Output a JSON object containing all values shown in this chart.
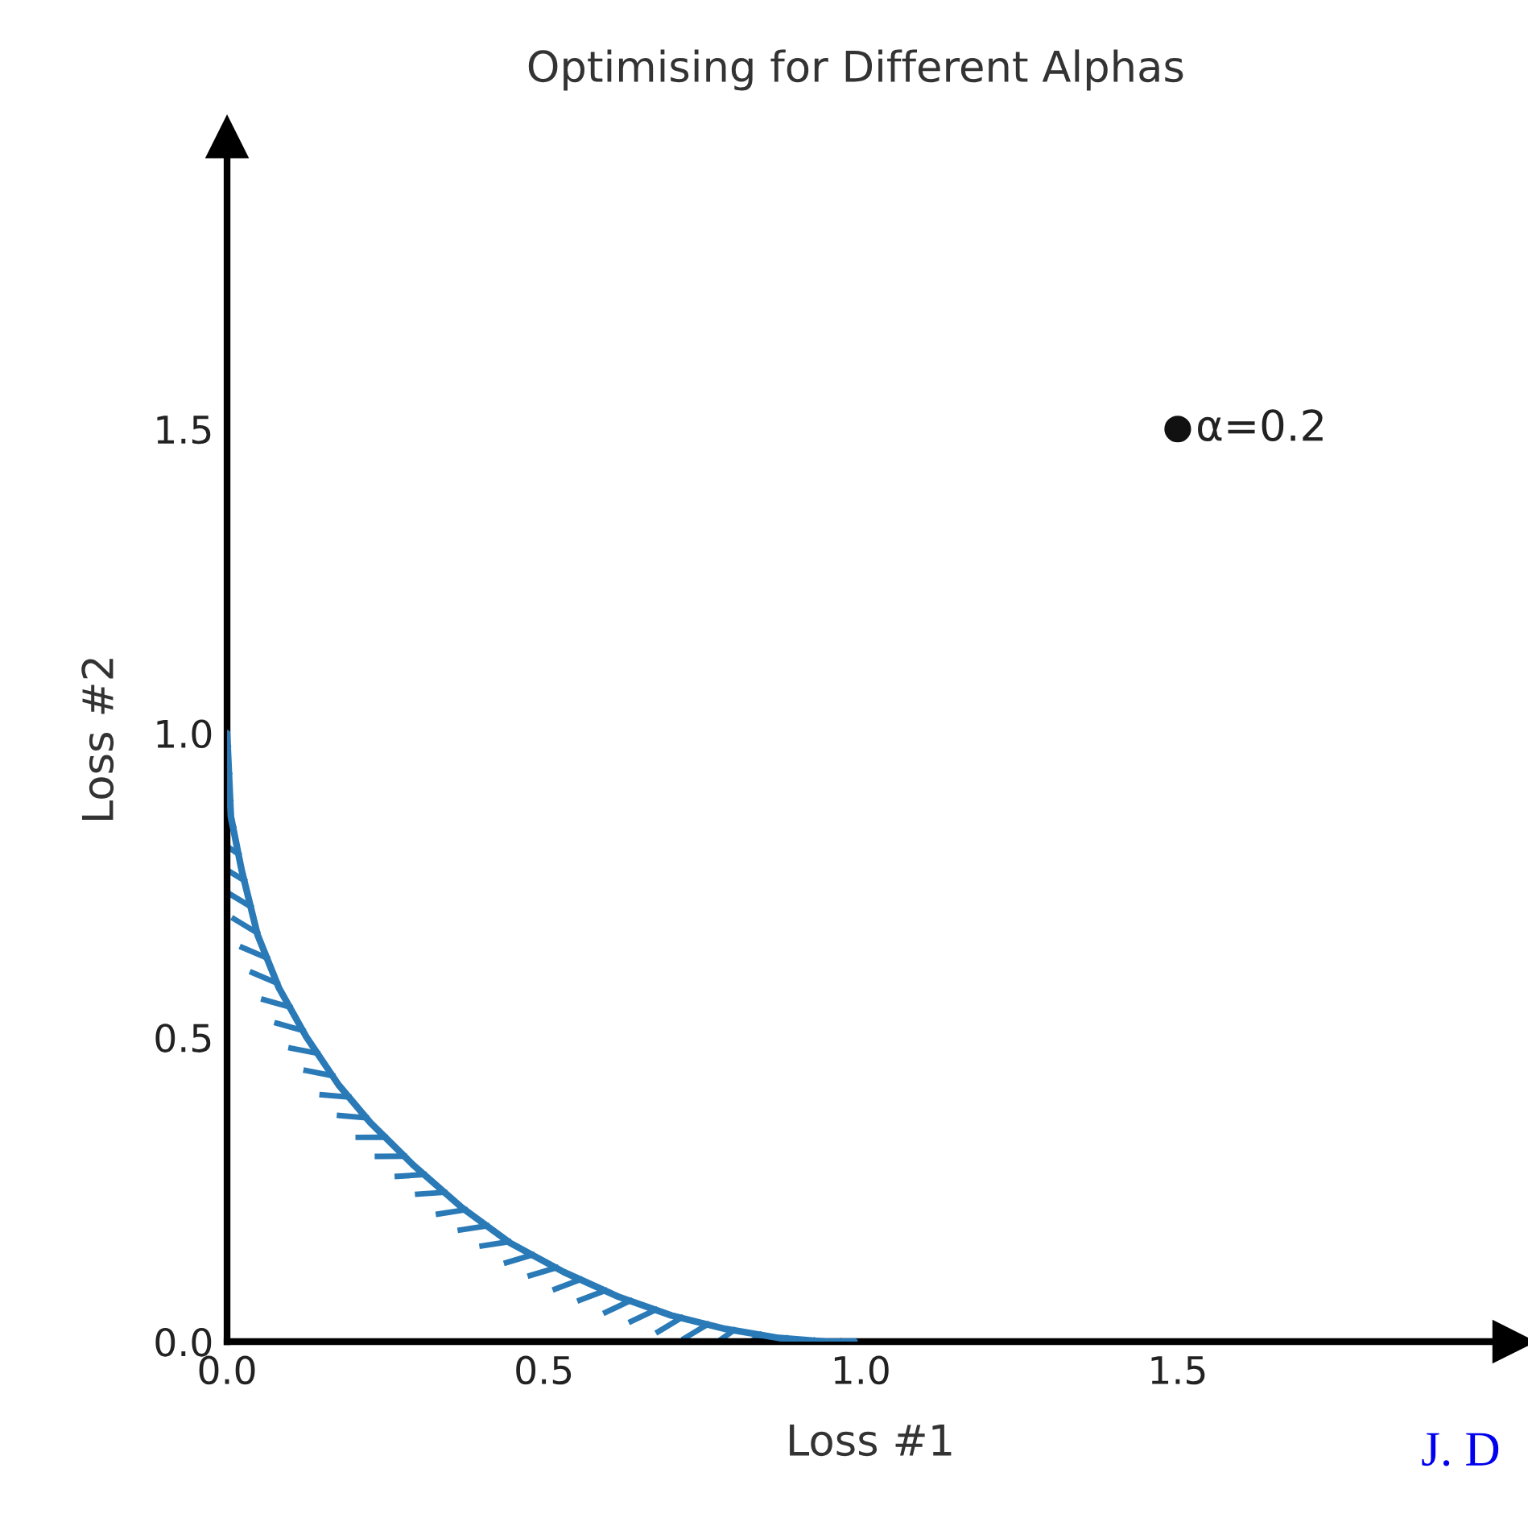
{
  "chart_data": {
    "type": "line",
    "title": "Optimising for Different Alphas",
    "xlabel": "Loss #1",
    "ylabel": "Loss #2",
    "xlim": [
      0,
      2.03
    ],
    "ylim": [
      0,
      1.98
    ],
    "xticks": [
      {
        "value": 0,
        "label": "0.0"
      },
      {
        "value": 0.5,
        "label": "0.5"
      },
      {
        "value": 1,
        "label": "1.0"
      },
      {
        "value": 1.5,
        "label": "1.5"
      }
    ],
    "yticks": [
      {
        "value": 0,
        "label": "0.0"
      },
      {
        "value": 0.5,
        "label": "0.5"
      },
      {
        "value": 1,
        "label": "1.0"
      },
      {
        "value": 1.5,
        "label": "1.5"
      }
    ],
    "grid": false,
    "marker": "none",
    "line_style": "solid",
    "series": [
      {
        "color": "#2a7ab7",
        "x": [
          0.0,
          0.006,
          0.023,
          0.048,
          0.082,
          0.125,
          0.176,
          0.226,
          0.294,
          0.371,
          0.447,
          0.532,
          0.617,
          0.701,
          0.786,
          0.871,
          0.947,
          0.99
        ],
        "values": [
          1.0,
          0.863,
          0.775,
          0.669,
          0.581,
          0.501,
          0.422,
          0.36,
          0.29,
          0.22,
          0.162,
          0.114,
          0.074,
          0.043,
          0.021,
          0.006,
          0.0,
          0.0
        ]
      },
      {
        "type": "scatter",
        "color": "#111111",
        "marker": "circle",
        "x": [
          1.5
        ],
        "values": [
          1.5
        ]
      }
    ],
    "annotations": [
      {
        "text": "α=0.2",
        "x": 1.5,
        "y": 1.5
      },
      "J. D"
    ]
  }
}
